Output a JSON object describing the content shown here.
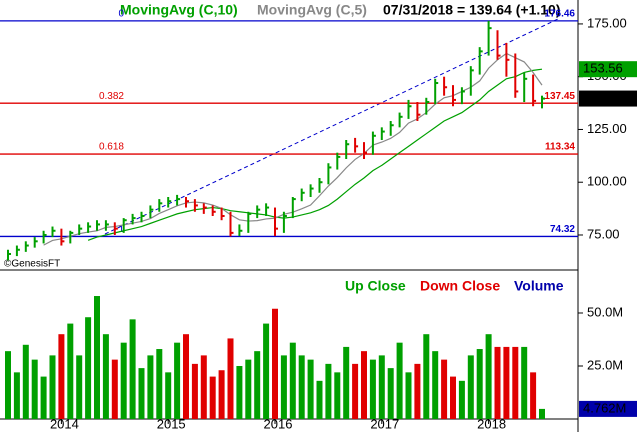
{
  "chart_data": [
    {
      "type": "ohlc",
      "header": "07/31/2018 = 139.64 (+1.10)",
      "up_color": "#00a000",
      "down_color": "#e00000",
      "close": [
        66,
        68,
        70,
        72,
        75,
        77,
        72,
        76,
        78,
        79,
        80,
        80,
        78,
        82,
        83,
        84,
        87,
        90,
        91,
        92,
        91,
        89,
        88,
        86,
        84,
        76,
        77,
        85,
        87,
        88,
        78,
        84,
        92,
        95,
        97,
        100,
        107,
        112,
        118,
        117,
        114,
        122,
        124,
        127,
        131,
        136,
        132,
        138,
        147,
        145,
        139,
        143,
        153,
        162,
        173,
        160,
        158,
        143,
        149,
        138.54,
        139.64
      ],
      "high": [
        68,
        70,
        72,
        74,
        77,
        79,
        78,
        77,
        80,
        81,
        82,
        82,
        81,
        83,
        85,
        86,
        89,
        92,
        93,
        94,
        93,
        92,
        90,
        89,
        88,
        86,
        80,
        86,
        89,
        90,
        88,
        86,
        93,
        97,
        99,
        102,
        109,
        114,
        120,
        121,
        119,
        124,
        126,
        129,
        133,
        139,
        138,
        140,
        149,
        150,
        146,
        145,
        155,
        164,
        176.46,
        172,
        166,
        161,
        152,
        151,
        141
      ],
      "low": [
        63,
        65,
        67,
        69,
        71,
        74,
        70,
        71,
        75,
        76,
        77,
        77,
        75,
        76,
        80,
        81,
        83,
        86,
        88,
        89,
        88,
        86,
        85,
        84,
        82,
        74.32,
        74.5,
        76,
        83,
        84,
        74.5,
        76,
        83,
        91,
        93,
        95,
        99,
        106,
        111,
        114,
        111,
        113,
        120,
        122,
        126,
        130,
        129,
        132,
        137,
        141,
        136,
        137,
        141,
        151,
        160,
        158,
        150,
        140,
        138,
        136,
        135
      ],
      "series": [
        {
          "name": "MovingAvg (C,10)",
          "color": "#00a000",
          "values": [
            null,
            null,
            null,
            null,
            null,
            null,
            null,
            null,
            null,
            72.5,
            74,
            75,
            76,
            77,
            78,
            79,
            80.5,
            82,
            83.5,
            85,
            86,
            87,
            87.5,
            88,
            87.5,
            86.5,
            86,
            85.5,
            85,
            84.5,
            83.5,
            83,
            83.5,
            84.5,
            85.5,
            87,
            89,
            92,
            95.5,
            99,
            102,
            105.5,
            108,
            111,
            114,
            117,
            120,
            123,
            126,
            129,
            131,
            133,
            136,
            139,
            143,
            146,
            149,
            150,
            152,
            153,
            153.56
          ]
        },
        {
          "name": "MovingAvg (C,5)",
          "color": "#888888",
          "values": [
            null,
            null,
            null,
            null,
            70.2,
            72.4,
            73.2,
            74.4,
            75.6,
            76.4,
            77,
            78.6,
            79,
            79.8,
            80.6,
            81.4,
            82.8,
            85.2,
            87,
            88.8,
            90.2,
            90.6,
            90.2,
            89.2,
            87.6,
            84.6,
            82.2,
            81.6,
            81.8,
            82.6,
            83,
            84.8,
            85.8,
            87.4,
            89.2,
            93.6,
            98.2,
            102.2,
            106.8,
            110.8,
            113.6,
            117.6,
            119,
            120.8,
            123.6,
            128,
            130,
            133,
            137,
            140,
            141,
            143,
            145,
            148,
            154,
            158,
            161,
            159,
            157,
            152,
            146
          ]
        }
      ],
      "fib_levels": [
        {
          "ratio": "0",
          "value": 176.46,
          "color": "#0000cc"
        },
        {
          "ratio": "0.382",
          "value": 137.45,
          "color": "#e00000"
        },
        {
          "ratio": "0.618",
          "value": 113.34,
          "color": "#e00000"
        },
        {
          "ratio": "1",
          "value": 74.32,
          "color": "#0000cc"
        }
      ],
      "ylim": [
        62.2,
        181.6
      ],
      "yticks": [
        {
          "value": 75,
          "label": "75.00"
        },
        {
          "value": 100,
          "label": "100.00"
        },
        {
          "value": 125,
          "label": "125.00"
        },
        {
          "value": 150,
          "label": "150.00"
        },
        {
          "value": 175,
          "label": "175.00"
        }
      ],
      "credit": "©GenesisFT"
    },
    {
      "type": "bar",
      "categories": [
        null,
        null,
        null,
        null,
        null,
        null,
        "2014",
        null,
        null,
        null,
        null,
        null,
        null,
        null,
        null,
        null,
        null,
        null,
        "2015",
        null,
        null,
        null,
        null,
        null,
        null,
        null,
        null,
        null,
        null,
        null,
        "2016",
        null,
        null,
        null,
        null,
        null,
        null,
        null,
        null,
        null,
        null,
        null,
        "2017",
        null,
        null,
        null,
        null,
        null,
        null,
        null,
        null,
        null,
        null,
        null,
        "2018",
        null,
        null,
        null,
        null,
        null,
        null
      ],
      "values": [
        32,
        22,
        35,
        28,
        20,
        30,
        40,
        45,
        30,
        48,
        58,
        40,
        28,
        36,
        47,
        24,
        30,
        33,
        22,
        36,
        40,
        26,
        30,
        20,
        23,
        38,
        25,
        28,
        32,
        45,
        52,
        30,
        36,
        30,
        28,
        18,
        26,
        22,
        34,
        26,
        32,
        28,
        30,
        24,
        36,
        22,
        26,
        40,
        32,
        28,
        20,
        18,
        30,
        33,
        40,
        34,
        34,
        34,
        34,
        22,
        4.762
      ],
      "current_label": "4.762M",
      "legend": [
        {
          "name": "Up Close",
          "color": "#00a000"
        },
        {
          "name": "Down Close",
          "color": "#e00000"
        },
        {
          "name": "Volume",
          "color": "#0000aa"
        }
      ],
      "ylim": [
        0,
        66.5
      ],
      "yticks": [
        {
          "value": 25,
          "label": "25.0M"
        },
        {
          "value": 50,
          "label": "50.0M"
        }
      ]
    }
  ]
}
